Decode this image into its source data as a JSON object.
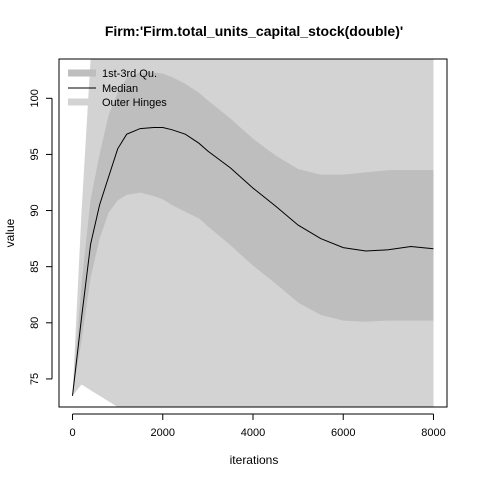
{
  "chart_data": {
    "type": "area",
    "title": "Firm:'Firm.total_units_capital_stock(double)'",
    "xlabel": "iterations",
    "ylabel": "value",
    "xlim": [
      -300,
      8300
    ],
    "ylim": [
      72.5,
      103.5
    ],
    "x_ticks": [
      0,
      2000,
      4000,
      6000,
      8000
    ],
    "y_ticks": [
      75,
      80,
      85,
      90,
      95,
      100
    ],
    "legend": {
      "position": "top-left",
      "entries": [
        "1st-3rd Qu.",
        "Median",
        "Outer Hinges"
      ]
    },
    "colors": {
      "quartile_band": "#bebebe",
      "outer_band": "#d3d3d3",
      "median_line": "#000000"
    },
    "x": [
      0,
      200,
      400,
      600,
      800,
      1000,
      1200,
      1500,
      1800,
      2000,
      2200,
      2500,
      2800,
      3000,
      3500,
      4000,
      4500,
      5000,
      5500,
      6000,
      6500,
      7000,
      7500,
      8000
    ],
    "series": [
      {
        "name": "Median",
        "values": [
          73.5,
          80.5,
          87.0,
          90.5,
          93.0,
          95.5,
          96.8,
          97.3,
          97.4,
          97.4,
          97.2,
          96.8,
          96.0,
          95.3,
          93.8,
          92.0,
          90.4,
          88.7,
          87.5,
          86.7,
          86.4,
          86.5,
          86.8,
          86.6
        ]
      },
      {
        "name": "1st-3rd Qu.",
        "values_low": [
          73.5,
          78.5,
          84.0,
          87.5,
          89.8,
          90.9,
          91.4,
          91.6,
          91.3,
          91.0,
          90.5,
          89.9,
          89.3,
          88.6,
          86.9,
          85.1,
          83.5,
          81.8,
          80.7,
          80.2,
          80.1,
          80.2,
          80.2,
          80.2
        ],
        "values_high": [
          73.5,
          83.5,
          91.0,
          95.0,
          98.5,
          100.5,
          101.8,
          102.3,
          102.3,
          102.2,
          101.9,
          101.3,
          100.5,
          99.8,
          98.2,
          96.4,
          94.9,
          93.7,
          93.2,
          93.2,
          93.4,
          93.6,
          93.6,
          93.6
        ]
      },
      {
        "name": "Outer Hinges",
        "values_low": [
          73.5,
          74.5,
          74.0,
          73.5,
          73.0,
          72.5,
          72.5,
          72.5,
          72.5,
          72.5,
          72.5,
          72.5,
          72.5,
          72.5,
          72.5,
          72.5,
          72.5,
          72.5,
          72.5,
          72.5,
          72.5,
          72.5,
          72.5,
          72.5
        ],
        "values_high": [
          73.5,
          90.0,
          103.5,
          103.5,
          103.5,
          103.5,
          103.5,
          103.5,
          103.5,
          103.5,
          103.5,
          103.5,
          103.5,
          103.5,
          103.5,
          103.5,
          103.5,
          103.5,
          103.5,
          103.5,
          103.5,
          103.5,
          103.5,
          103.5
        ]
      }
    ]
  }
}
